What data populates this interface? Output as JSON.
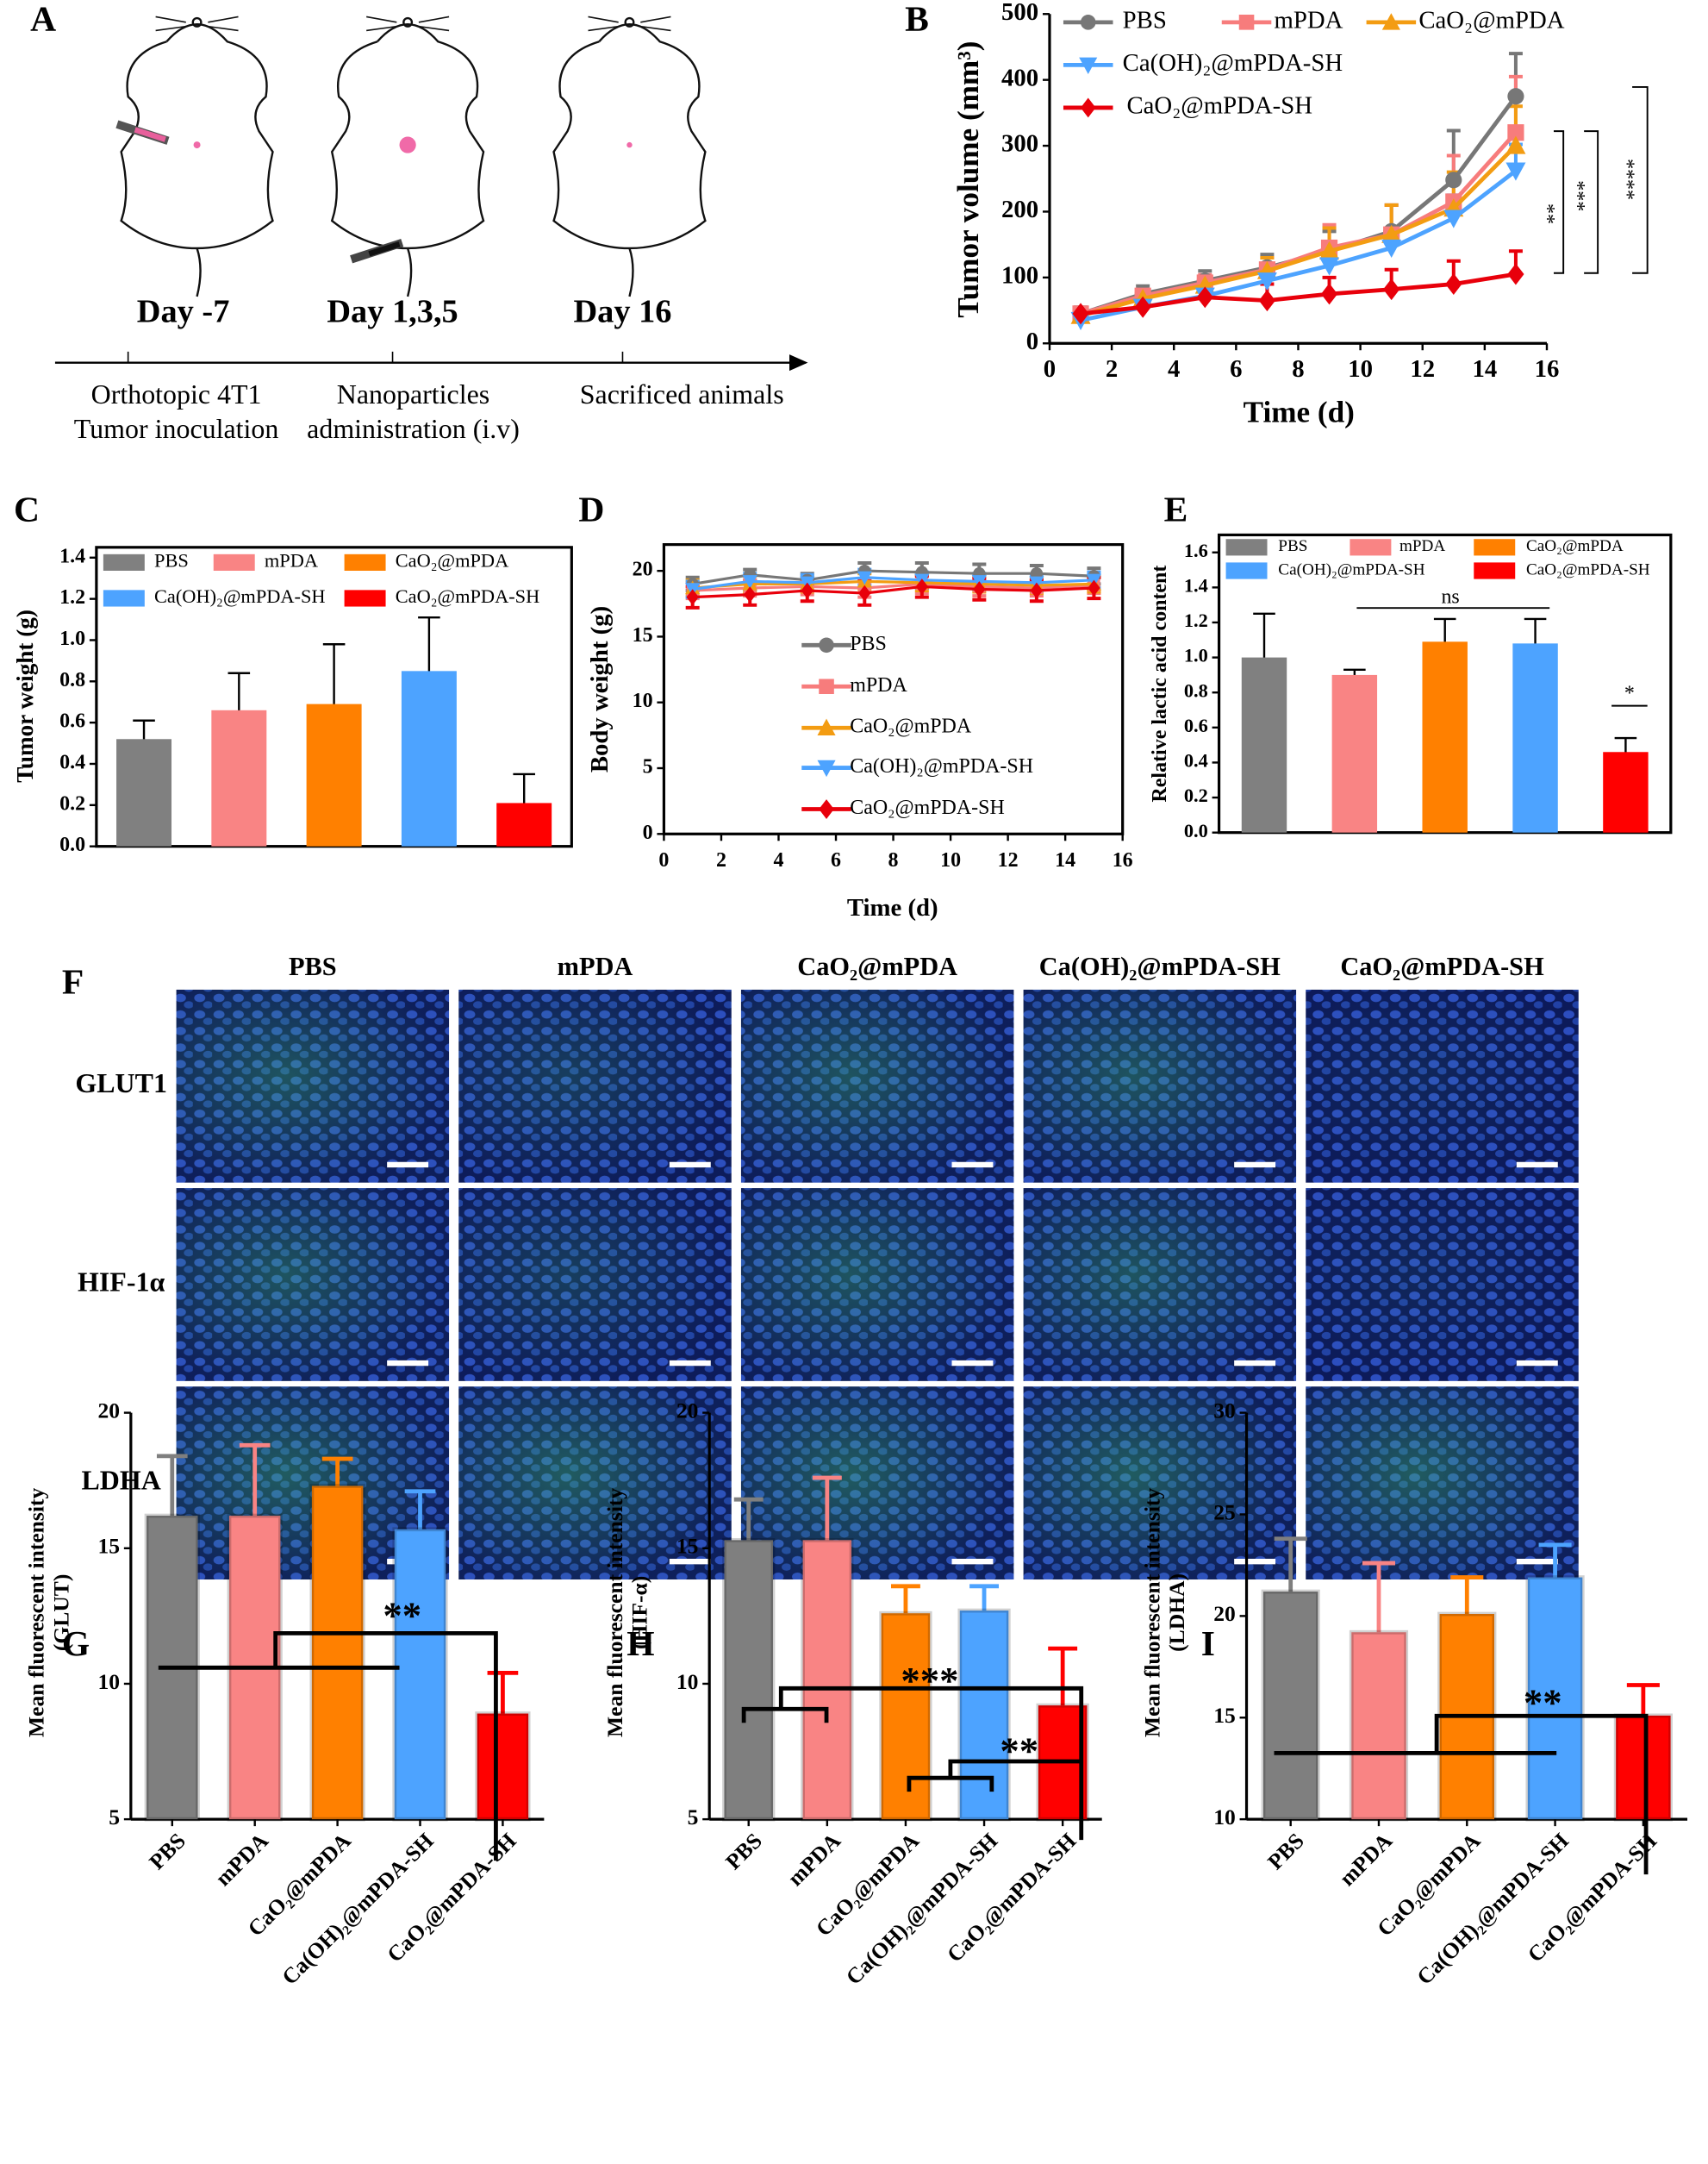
{
  "timeline": {
    "panel": "A",
    "events": [
      {
        "day": "Day -7",
        "lines": [
          "Orthotopic 4T1",
          "Tumor inoculation"
        ]
      },
      {
        "day": "Day 1,3,5",
        "lines": [
          "Nanoparticles",
          "administration (i.v)"
        ]
      },
      {
        "day": "Day 16",
        "lines": [
          "Sacrificed animals"
        ]
      }
    ]
  },
  "chart_data": [
    {
      "panel": "B",
      "type": "line",
      "xlabel": "Time (d)",
      "ylabel": "Tumor volume (mm³)",
      "x": [
        1,
        3,
        5,
        7,
        9,
        11,
        13,
        15
      ],
      "xlim": [
        0,
        16
      ],
      "xticks": [
        0,
        2,
        4,
        6,
        8,
        10,
        12,
        14,
        16
      ],
      "ylim": [
        0,
        500
      ],
      "yticks": [
        0,
        100,
        200,
        300,
        400,
        500
      ],
      "series": [
        {
          "name": "PBS",
          "color": "#777777",
          "marker": "circle",
          "values": [
            45,
            75,
            95,
            115,
            140,
            170,
            248,
            375
          ],
          "errors": [
            10,
            12,
            15,
            20,
            30,
            40,
            75,
            65
          ]
        },
        {
          "name": "mPDA",
          "color": "#f77c7c",
          "marker": "square",
          "values": [
            45,
            72,
            92,
            112,
            145,
            165,
            215,
            320
          ],
          "errors": [
            8,
            10,
            12,
            18,
            35,
            45,
            70,
            85
          ]
        },
        {
          "name": "CaO₂@mPDA",
          "color": "#f39c12",
          "marker": "triangle-up",
          "values": [
            42,
            68,
            88,
            110,
            140,
            165,
            205,
            300
          ],
          "errors": [
            8,
            10,
            12,
            20,
            35,
            45,
            55,
            60
          ]
        },
        {
          "name": "Ca(OH)₂@mPDA-SH",
          "color": "#4da3ff",
          "marker": "triangle-down",
          "values": [
            35,
            55,
            72,
            95,
            118,
            145,
            190,
            262
          ],
          "errors": [
            6,
            8,
            10,
            15,
            20,
            30,
            35,
            40
          ]
        },
        {
          "name": "CaO₂@mPDA-SH",
          "color": "#e8000b",
          "marker": "diamond",
          "values": [
            45,
            55,
            70,
            65,
            75,
            82,
            90,
            105
          ],
          "errors": [
            8,
            8,
            10,
            25,
            25,
            30,
            35,
            35
          ]
        }
      ],
      "annotations": [
        "**",
        "***",
        "****"
      ]
    },
    {
      "panel": "C",
      "type": "bar",
      "ylabel": "Tumor weight (g)",
      "ylim": [
        0,
        1.45
      ],
      "yticks": [
        {
          "value": 0,
          "label": "0.0"
        },
        0.2,
        0.4,
        0.6,
        0.8,
        {
          "value": 1,
          "label": "1.0"
        },
        1.2,
        1.4
      ],
      "series": [
        {
          "name": "PBS",
          "color": "#808080",
          "values": [
            0.52
          ],
          "errors": [
            0.09
          ]
        },
        {
          "name": "mPDA",
          "color": "#f98484",
          "values": [
            0.66
          ],
          "errors": [
            0.18
          ]
        },
        {
          "name": "CaO₂@mPDA",
          "color": "#ff8000",
          "values": [
            0.69
          ],
          "errors": [
            0.29
          ]
        },
        {
          "name": "Ca(OH)₂@mPDA-SH",
          "color": "#4da3ff",
          "values": [
            0.85
          ],
          "errors": [
            0.26
          ]
        },
        {
          "name": "CaO₂@mPDA-SH",
          "color": "#ff0000",
          "values": [
            0.21
          ],
          "errors": [
            0.14
          ]
        }
      ]
    },
    {
      "panel": "D",
      "type": "line",
      "xlabel": "Time (d)",
      "ylabel": "Body weight (g)",
      "x": [
        1,
        3,
        5,
        7,
        9,
        11,
        13,
        15
      ],
      "xlim": [
        0,
        16
      ],
      "xticks": [
        0,
        2,
        4,
        6,
        8,
        10,
        12,
        14,
        16
      ],
      "ylim": [
        0,
        22
      ],
      "yticks": [
        0,
        5,
        10,
        15,
        20
      ],
      "series": [
        {
          "name": "PBS",
          "color": "#777777",
          "marker": "circle",
          "values": [
            19,
            19.7,
            19.3,
            20,
            19.9,
            19.8,
            19.8,
            19.6
          ],
          "errors": [
            0.5,
            0.4,
            0.5,
            0.6,
            0.7,
            0.7,
            0.6,
            0.6
          ]
        },
        {
          "name": "mPDA",
          "color": "#f77c7c",
          "marker": "square",
          "values": [
            18.5,
            18.7,
            18.8,
            18.7,
            19,
            18.8,
            18.7,
            18.9
          ],
          "errors": [
            0.6,
            0.6,
            0.6,
            0.7,
            0.7,
            0.7,
            0.6,
            0.6
          ]
        },
        {
          "name": "CaO₂@mPDA",
          "color": "#f39c12",
          "marker": "triangle-up",
          "values": [
            18.7,
            19,
            19,
            19.2,
            19.1,
            19,
            18.9,
            19
          ],
          "errors": [
            0.6,
            0.6,
            0.6,
            0.6,
            0.6,
            0.6,
            0.6,
            0.6
          ]
        },
        {
          "name": "Ca(OH)₂@mPDA-SH",
          "color": "#4da3ff",
          "marker": "triangle-down",
          "values": [
            18.6,
            19.2,
            19.1,
            19.5,
            19.3,
            19.2,
            19.1,
            19.3
          ],
          "errors": [
            0.6,
            0.6,
            0.6,
            0.6,
            0.6,
            0.6,
            0.6,
            0.6
          ]
        },
        {
          "name": "CaO₂@mPDA-SH",
          "color": "#e8000b",
          "marker": "diamond",
          "values": [
            18,
            18.2,
            18.5,
            18.3,
            18.8,
            18.6,
            18.5,
            18.7
          ],
          "errors": [
            0.8,
            0.8,
            0.8,
            0.9,
            0.8,
            0.8,
            0.8,
            0.8
          ]
        }
      ]
    },
    {
      "panel": "E",
      "type": "bar",
      "ylabel": "Relative lactic acid content",
      "ylim": [
        0,
        1.7
      ],
      "yticks": [
        {
          "value": 0,
          "label": "0.0"
        },
        0.2,
        0.4,
        0.6,
        0.8,
        {
          "value": 1,
          "label": "1.0"
        },
        1.2,
        1.4,
        1.6
      ],
      "series": [
        {
          "name": "PBS",
          "color": "#808080",
          "values": [
            1.0
          ],
          "errors": [
            0.25
          ]
        },
        {
          "name": "mPDA",
          "color": "#f98484",
          "values": [
            0.9
          ],
          "errors": [
            0.03
          ]
        },
        {
          "name": "CaO₂@mPDA",
          "color": "#ff8000",
          "values": [
            1.09
          ],
          "errors": [
            0.13
          ]
        },
        {
          "name": "Ca(OH)₂@mPDA-SH",
          "color": "#4da3ff",
          "values": [
            1.08
          ],
          "errors": [
            0.14
          ]
        },
        {
          "name": "CaO₂@mPDA-SH",
          "color": "#ff0000",
          "values": [
            0.46
          ],
          "errors": [
            0.08
          ]
        }
      ],
      "annotations": [
        "ns",
        "*"
      ]
    },
    {
      "panel": "G",
      "type": "bar",
      "ylabel": [
        "Mean fluorescent intensity",
        "(GLUT)"
      ],
      "categories": [
        "PBS",
        "mPDA",
        "CaO₂@mPDA",
        "Ca(OH)₂@mPDA-SH",
        "CaO₂@mPDA-SH"
      ],
      "values": [
        16.2,
        16.2,
        17.3,
        15.7,
        8.9
      ],
      "errors": [
        2.2,
        2.6,
        1.0,
        1.4,
        1.5
      ],
      "colors": [
        "#7f7f7f",
        "#f98484",
        "#ff8000",
        "#4da3ff",
        "#ff0000"
      ],
      "ylim": [
        5,
        20
      ],
      "yticks": [
        5,
        10,
        15,
        20
      ],
      "annotations": [
        "**"
      ]
    },
    {
      "panel": "H",
      "type": "bar",
      "ylabel": [
        "Mean fluorescent intensity",
        "(HIF-α)"
      ],
      "categories": [
        "PBS",
        "mPDA",
        "CaO₂@mPDA",
        "Ca(OH)₂@mPDA-SH",
        "CaO₂@mPDA-SH"
      ],
      "values": [
        15.3,
        15.3,
        12.6,
        12.7,
        9.2
      ],
      "errors": [
        1.5,
        2.3,
        1.0,
        0.9,
        2.1
      ],
      "colors": [
        "#7f7f7f",
        "#f98484",
        "#ff8000",
        "#4da3ff",
        "#ff0000"
      ],
      "ylim": [
        5,
        20
      ],
      "yticks": [
        5,
        10,
        15,
        20
      ],
      "annotations": [
        "***",
        "**"
      ]
    },
    {
      "panel": "I",
      "type": "bar",
      "ylabel": [
        "Mean fluorescent intensity",
        "(LDHA)"
      ],
      "categories": [
        "PBS",
        "mPDA",
        "CaO₂@mPDA",
        "Ca(OH)₂@mPDA-SH",
        "CaO₂@mPDA-SH"
      ],
      "values": [
        21.2,
        19.2,
        20.1,
        21.9,
        15.1
      ],
      "errors": [
        2.6,
        3.4,
        1.8,
        1.6,
        1.5
      ],
      "colors": [
        "#7f7f7f",
        "#f98484",
        "#ff8000",
        "#4da3ff",
        "#ff0000"
      ],
      "ylim": [
        10,
        30
      ],
      "yticks": [
        10,
        15,
        20,
        25,
        30
      ],
      "annotations": [
        "**"
      ]
    }
  ],
  "microscopy": {
    "panel": "F",
    "columns": [
      "PBS",
      "mPDA",
      "CaO₂@mPDA",
      "Ca(OH)₂@mPDA-SH",
      "CaO₂@mPDA-SH"
    ],
    "rows": [
      "GLUT1",
      "HIF-1α",
      "LDHA"
    ]
  }
}
